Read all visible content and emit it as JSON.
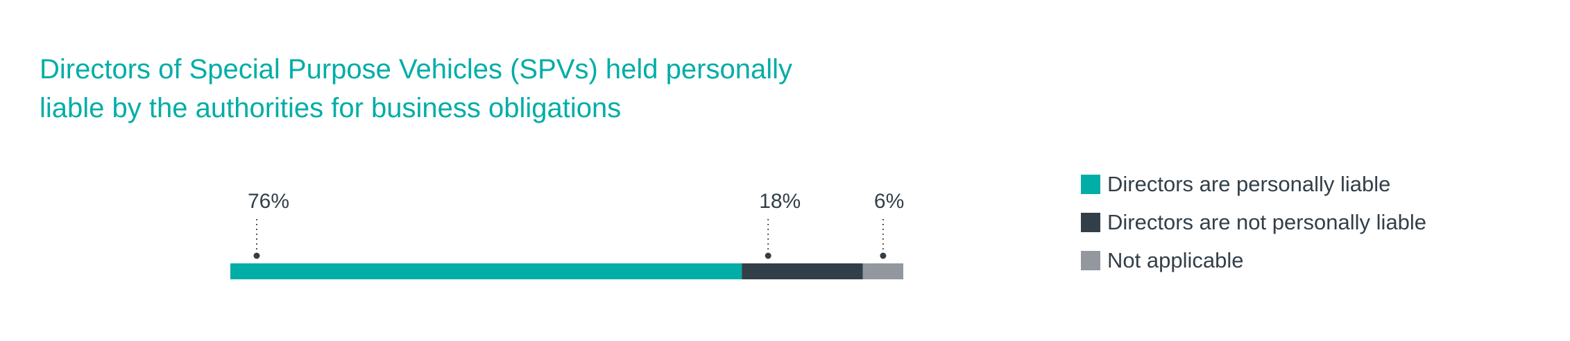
{
  "chart_data": {
    "type": "bar",
    "orientation": "horizontal-stacked",
    "title": [
      "Directors of Special Purpose Vehicles (SPVs) held personally",
      "liable by the authorities for business obligations"
    ],
    "series": [
      {
        "name": "Directors are personally liable",
        "value": 76,
        "label": "76%",
        "color": "#00ada7"
      },
      {
        "name": "Directors are not personally liable",
        "value": 18,
        "label": "18%",
        "color": "#333f48"
      },
      {
        "name": "Not applicable",
        "value": 6,
        "label": "6%",
        "color": "#92989d"
      }
    ],
    "xlim": [
      0,
      100
    ],
    "legend_position": "right",
    "grid": false
  }
}
